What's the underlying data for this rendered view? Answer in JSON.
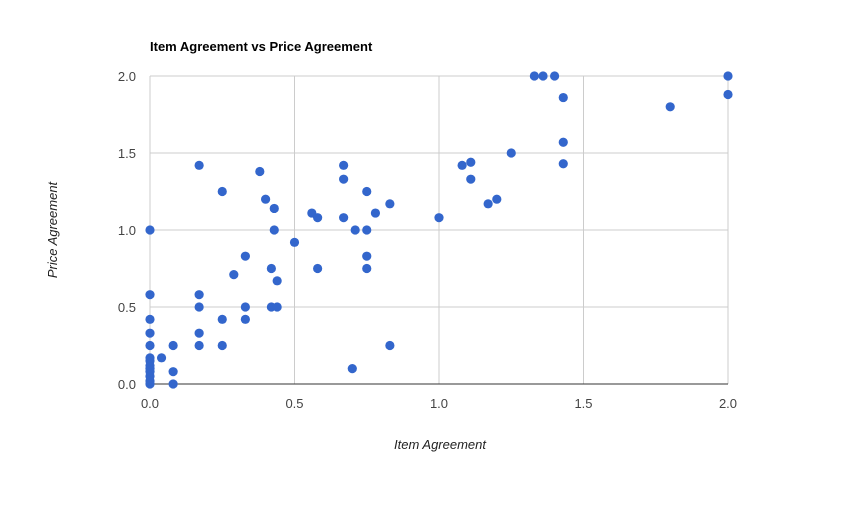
{
  "chart_data": {
    "type": "scatter",
    "title": "Item Agreement vs Price Agreement",
    "xlabel": "Item Agreement",
    "ylabel": "Price Agreement",
    "xlim": [
      0,
      2
    ],
    "ylim": [
      0,
      2
    ],
    "x_ticks": [
      "0.0",
      "0.5",
      "1.0",
      "1.5",
      "2.0"
    ],
    "y_ticks": [
      "0.0",
      "0.5",
      "1.0",
      "1.5",
      "2.0"
    ],
    "grid": true,
    "legend": "none",
    "point_color": "#3366cc",
    "points": [
      [
        0,
        0
      ],
      [
        0,
        0.02
      ],
      [
        0,
        0.05
      ],
      [
        0,
        0.08
      ],
      [
        0,
        0.1
      ],
      [
        0,
        0.12
      ],
      [
        0,
        0.15
      ],
      [
        0,
        0.17
      ],
      [
        0,
        0.25
      ],
      [
        0,
        0.33
      ],
      [
        0,
        0.42
      ],
      [
        0,
        0.58
      ],
      [
        0,
        1.0
      ],
      [
        0.04,
        0.17
      ],
      [
        0.08,
        0
      ],
      [
        0.08,
        0.08
      ],
      [
        0.08,
        0.25
      ],
      [
        0.17,
        0.25
      ],
      [
        0.17,
        0.33
      ],
      [
        0.17,
        0.5
      ],
      [
        0.17,
        0.58
      ],
      [
        0.17,
        1.42
      ],
      [
        0.25,
        0.25
      ],
      [
        0.25,
        0.42
      ],
      [
        0.25,
        1.25
      ],
      [
        0.29,
        0.71
      ],
      [
        0.33,
        0.42
      ],
      [
        0.33,
        0.5
      ],
      [
        0.33,
        0.83
      ],
      [
        0.38,
        1.38
      ],
      [
        0.4,
        1.2
      ],
      [
        0.42,
        0.5
      ],
      [
        0.42,
        0.75
      ],
      [
        0.43,
        1.0
      ],
      [
        0.43,
        1.14
      ],
      [
        0.44,
        0.5
      ],
      [
        0.44,
        0.67
      ],
      [
        0.5,
        0.92
      ],
      [
        0.56,
        1.11
      ],
      [
        0.58,
        0.75
      ],
      [
        0.58,
        1.08
      ],
      [
        0.67,
        1.08
      ],
      [
        0.67,
        1.33
      ],
      [
        0.67,
        1.42
      ],
      [
        0.7,
        0.1
      ],
      [
        0.71,
        1.0
      ],
      [
        0.75,
        0.75
      ],
      [
        0.75,
        0.83
      ],
      [
        0.75,
        1.0
      ],
      [
        0.75,
        1.25
      ],
      [
        0.78,
        1.11
      ],
      [
        0.83,
        0.25
      ],
      [
        0.83,
        1.17
      ],
      [
        1.0,
        1.08
      ],
      [
        1.08,
        1.42
      ],
      [
        1.11,
        1.33
      ],
      [
        1.11,
        1.44
      ],
      [
        1.17,
        1.17
      ],
      [
        1.2,
        1.2
      ],
      [
        1.25,
        1.5
      ],
      [
        1.33,
        2.0
      ],
      [
        1.36,
        2.0
      ],
      [
        1.4,
        2.0
      ],
      [
        1.43,
        1.43
      ],
      [
        1.43,
        1.57
      ],
      [
        1.43,
        1.86
      ],
      [
        1.8,
        1.8
      ],
      [
        2.0,
        1.88
      ],
      [
        2.0,
        2.0
      ]
    ]
  }
}
